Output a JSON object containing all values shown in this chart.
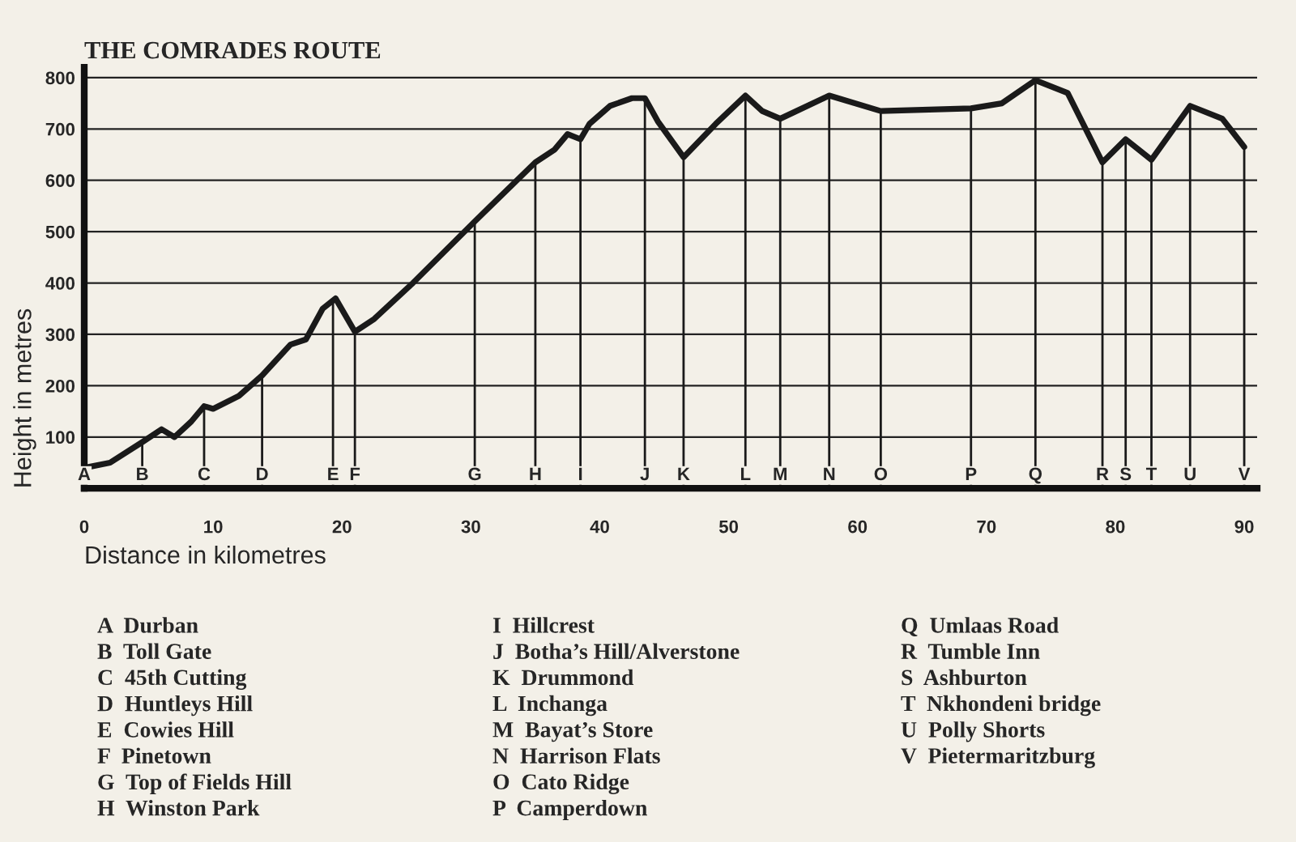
{
  "chart_data": {
    "type": "line",
    "title": "THE COMRADES ROUTE",
    "xlabel": "Distance in kilometres",
    "ylabel": "Height in metres",
    "x": [
      0,
      2,
      4.5,
      6,
      7,
      8.3,
      9.3,
      10,
      12,
      13.8,
      16,
      17.2,
      18.5,
      19.5,
      21,
      22.5,
      25.5,
      30.3,
      35,
      36.5,
      37.5,
      38.5,
      39.2,
      40.8,
      42.5,
      43.5,
      44.5,
      46.5,
      49,
      51.3,
      52.6,
      54,
      57.8,
      61.8,
      68.8,
      71.2,
      73.8,
      76.3,
      79,
      80.8,
      82.8,
      85.8,
      88.3,
      90
    ],
    "series": [
      {
        "color": "#1a1a1a",
        "values": [
          40,
          50,
          90,
          115,
          100,
          130,
          160,
          155,
          180,
          220,
          280,
          290,
          350,
          370,
          305,
          330,
          400,
          520,
          635,
          660,
          690,
          680,
          710,
          745,
          760,
          760,
          715,
          645,
          710,
          765,
          735,
          720,
          765,
          735,
          740,
          750,
          795,
          770,
          635,
          680,
          640,
          745,
          720,
          665
        ]
      }
    ],
    "xlim": [
      0,
      91
    ],
    "ylim": [
      0,
      820
    ],
    "xticks": [
      0,
      10,
      20,
      30,
      40,
      50,
      60,
      70,
      80,
      90
    ],
    "yticks": [
      100,
      200,
      300,
      400,
      500,
      600,
      700,
      800
    ],
    "grid": "y",
    "annotations": [
      {
        "text": "A",
        "x": 0,
        "y": 40
      },
      {
        "text": "B",
        "x": 4.5,
        "y": 90
      },
      {
        "text": "C",
        "x": 9.3,
        "y": 160
      },
      {
        "text": "D",
        "x": 13.8,
        "y": 220
      },
      {
        "text": "E",
        "x": 19.3,
        "y": 365
      },
      {
        "text": "F",
        "x": 21,
        "y": 305
      },
      {
        "text": "G",
        "x": 30.3,
        "y": 520
      },
      {
        "text": "H",
        "x": 35,
        "y": 635
      },
      {
        "text": "I",
        "x": 38.5,
        "y": 680
      },
      {
        "text": "J",
        "x": 43.5,
        "y": 760
      },
      {
        "text": "K",
        "x": 46.5,
        "y": 645
      },
      {
        "text": "L",
        "x": 51.3,
        "y": 765
      },
      {
        "text": "M",
        "x": 54,
        "y": 720
      },
      {
        "text": "N",
        "x": 57.8,
        "y": 765
      },
      {
        "text": "O",
        "x": 61.8,
        "y": 735
      },
      {
        "text": "P",
        "x": 68.8,
        "y": 740
      },
      {
        "text": "Q",
        "x": 73.8,
        "y": 795
      },
      {
        "text": "R",
        "x": 79,
        "y": 635
      },
      {
        "text": "S",
        "x": 80.8,
        "y": 680
      },
      {
        "text": "T",
        "x": 82.8,
        "y": 640
      },
      {
        "text": "U",
        "x": 85.8,
        "y": 745
      },
      {
        "text": "V",
        "x": 90,
        "y": 665
      },
      "A  Durban",
      "B  Toll Gate",
      "C  45th Cutting",
      "D  Huntleys Hill",
      "E  Cowies Hill",
      "F  Pinetown",
      "G  Top of Fields Hill",
      "H  Winston Park",
      "I  Hillcrest",
      "J  Botha’s Hill/Alverstone",
      "K  Drummond",
      "L  Inchanga",
      "M  Bayat’s Store",
      "N  Harrison Flats",
      "O  Cato Ridge",
      "P  Camperdown",
      "Q  Umlaas Road",
      "R  Tumble Inn",
      "S  Ashburton",
      "T  Nkhondeni bridge",
      "U  Polly Shorts",
      "V  Pietermaritzburg"
    ]
  }
}
